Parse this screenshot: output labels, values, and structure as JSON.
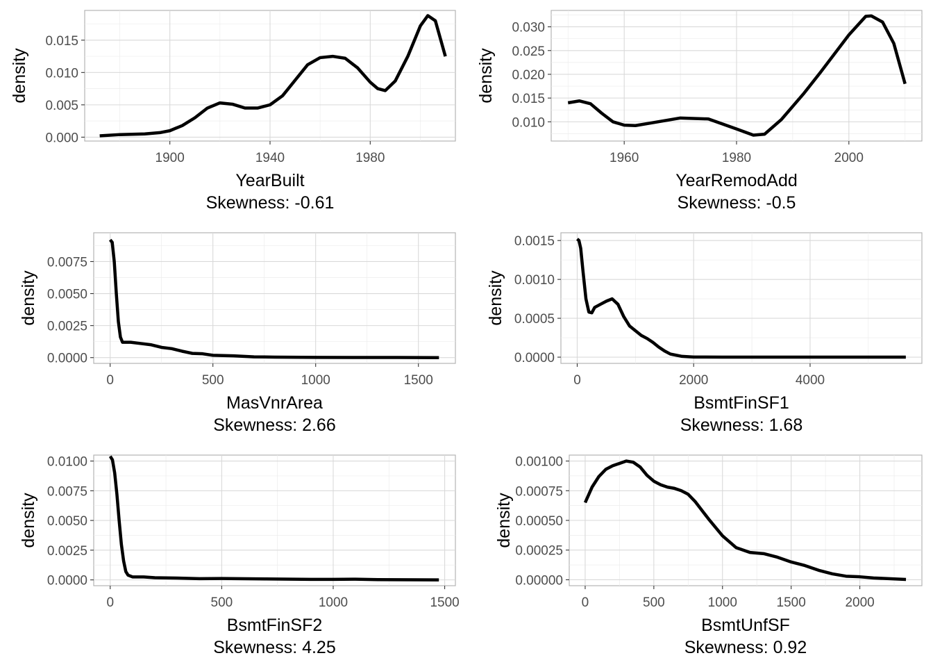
{
  "chart_data": [
    {
      "type": "line",
      "panel": "yearbuilt",
      "ylabel": "density",
      "xlabel": "YearBuilt",
      "subtitle": "Skewness: -0.61",
      "xlim": [
        1866,
        2014
      ],
      "ylim": [
        -0.0006,
        0.0196
      ],
      "xticks": [
        1900,
        1940,
        1980
      ],
      "yticks": [
        0.0,
        0.005,
        0.01,
        0.015
      ],
      "ytick_labels": [
        "0.000",
        "0.005",
        "0.010",
        "0.015"
      ],
      "x": [
        1872,
        1880,
        1890,
        1896,
        1900,
        1905,
        1910,
        1915,
        1920,
        1925,
        1930,
        1935,
        1940,
        1945,
        1950,
        1955,
        1960,
        1965,
        1970,
        1975,
        1980,
        1983,
        1986,
        1990,
        1995,
        2000,
        2003,
        2006,
        2010
      ],
      "y": [
        0.0002,
        0.0004,
        0.0005,
        0.0007,
        0.001,
        0.0018,
        0.003,
        0.0045,
        0.0053,
        0.0051,
        0.0045,
        0.0045,
        0.005,
        0.0064,
        0.0088,
        0.0112,
        0.0123,
        0.0125,
        0.0122,
        0.0107,
        0.0085,
        0.0075,
        0.0072,
        0.0087,
        0.0125,
        0.0172,
        0.0188,
        0.018,
        0.0125
      ]
    },
    {
      "type": "line",
      "panel": "yearremodadd",
      "ylabel": "density",
      "xlabel": "YearRemodAdd",
      "subtitle": "Skewness: -0.5",
      "xlim": [
        1947,
        2013
      ],
      "ylim": [
        0.00595,
        0.03345
      ],
      "xticks": [
        1960,
        1980,
        2000
      ],
      "yticks": [
        0.01,
        0.015,
        0.02,
        0.025,
        0.03
      ],
      "ytick_labels": [
        "0.010",
        "0.015",
        "0.020",
        "0.025",
        "0.030"
      ],
      "x": [
        1950,
        1952,
        1954,
        1956,
        1958,
        1960,
        1962,
        1965,
        1970,
        1975,
        1980,
        1983,
        1985,
        1988,
        1992,
        1995,
        2000,
        2003,
        2004,
        2006,
        2008,
        2010
      ],
      "y": [
        0.014,
        0.0144,
        0.0138,
        0.0118,
        0.01,
        0.0093,
        0.0092,
        0.0098,
        0.0108,
        0.0106,
        0.0085,
        0.0072,
        0.0074,
        0.0105,
        0.016,
        0.0205,
        0.0283,
        0.0322,
        0.0323,
        0.031,
        0.0265,
        0.018
      ]
    },
    {
      "type": "line",
      "panel": "masvnrarea",
      "ylabel": "density",
      "xlabel": "MasVnrArea",
      "subtitle": "Skewness: 2.66",
      "xlim": [
        -80,
        1680
      ],
      "ylim": [
        -0.00045,
        0.00975
      ],
      "xticks": [
        0,
        500,
        1000,
        1500
      ],
      "yticks": [
        0.0,
        0.0025,
        0.005,
        0.0075
      ],
      "ytick_labels": [
        "0.0000",
        "0.0025",
        "0.0050",
        "0.0075"
      ],
      "x": [
        0,
        10,
        20,
        30,
        40,
        50,
        60,
        80,
        100,
        150,
        200,
        250,
        300,
        350,
        400,
        450,
        500,
        600,
        700,
        800,
        1000,
        1200,
        1400,
        1600
      ],
      "y": [
        0.0092,
        0.009,
        0.0075,
        0.005,
        0.0028,
        0.0016,
        0.0012,
        0.0012,
        0.0012,
        0.0011,
        0.001,
        0.0008,
        0.0007,
        0.0005,
        0.00033,
        0.0003,
        0.00018,
        0.00014,
        6e-05,
        4e-05,
        2e-05,
        1e-05,
        1e-05,
        0.0
      ]
    },
    {
      "type": "line",
      "panel": "bsmtfinsf1",
      "ylabel": "density",
      "xlabel": "BsmtFinSF1",
      "subtitle": "Skewness: 1.68",
      "xlim": [
        -280,
        5920
      ],
      "ylim": [
        -8e-05,
        0.0016
      ],
      "xticks": [
        0,
        2000,
        4000
      ],
      "yticks": [
        0.0,
        0.0005,
        0.001,
        0.0015
      ],
      "ytick_labels": [
        "0.0000",
        "0.0005",
        "0.0010",
        "0.0015"
      ],
      "x": [
        0,
        30,
        60,
        100,
        150,
        200,
        250,
        300,
        400,
        500,
        600,
        700,
        800,
        900,
        1000,
        1100,
        1200,
        1300,
        1400,
        1500,
        1600,
        1800,
        2000,
        2500,
        3000,
        4000,
        5000,
        5644
      ],
      "y": [
        0.00152,
        0.0015,
        0.0014,
        0.0011,
        0.00075,
        0.00058,
        0.00057,
        0.00064,
        0.00068,
        0.00072,
        0.00075,
        0.00068,
        0.00052,
        0.0004,
        0.00034,
        0.00028,
        0.00024,
        0.00019,
        0.00013,
        8e-05,
        4e-05,
        1e-05,
        2e-06,
        0.0,
        0.0,
        0.0,
        0.0,
        0.0
      ]
    },
    {
      "type": "line",
      "panel": "bsmtfinsf2",
      "ylabel": "density",
      "xlabel": "BsmtFinSF2",
      "subtitle": "Skewness: 4.25",
      "xlim": [
        -74,
        1548
      ],
      "ylim": [
        -0.00049,
        0.0105
      ],
      "xticks": [
        0,
        500,
        1000,
        1500
      ],
      "yticks": [
        0.0,
        0.0025,
        0.005,
        0.0075,
        0.01
      ],
      "ytick_labels": [
        "0.0000",
        "0.0025",
        "0.0050",
        "0.0075",
        "0.0100"
      ],
      "x": [
        0,
        10,
        20,
        30,
        40,
        50,
        60,
        70,
        80,
        100,
        150,
        200,
        300,
        400,
        500,
        700,
        900,
        1000,
        1100,
        1200,
        1474
      ],
      "y": [
        0.0104,
        0.0101,
        0.009,
        0.0072,
        0.005,
        0.003,
        0.0016,
        0.0007,
        0.0004,
        0.00025,
        0.00025,
        0.00018,
        0.00015,
        0.0001,
        0.00012,
        8e-05,
        4e-05,
        4e-05,
        6e-05,
        2e-05,
        0.0
      ]
    },
    {
      "type": "line",
      "panel": "bsmtunfsf",
      "ylabel": "density",
      "xlabel": "BsmtUnfSF",
      "subtitle": "Skewness: 0.92",
      "xlim": [
        -116,
        2452
      ],
      "ylim": [
        -5e-05,
        0.00105
      ],
      "xticks": [
        0,
        500,
        1000,
        1500,
        2000
      ],
      "yticks": [
        0.0,
        0.00025,
        0.0005,
        0.00075,
        0.001
      ],
      "ytick_labels": [
        "0.00000",
        "0.00025",
        "0.00050",
        "0.00075",
        "0.00100"
      ],
      "x": [
        0,
        50,
        100,
        150,
        200,
        250,
        300,
        350,
        400,
        450,
        500,
        550,
        600,
        650,
        700,
        750,
        800,
        900,
        1000,
        1100,
        1200,
        1300,
        1400,
        1500,
        1600,
        1700,
        1800,
        1900,
        2000,
        2100,
        2200,
        2336
      ],
      "y": [
        0.00065,
        0.00078,
        0.00087,
        0.00093,
        0.00096,
        0.00098,
        0.001,
        0.00099,
        0.00095,
        0.00088,
        0.00083,
        0.0008,
        0.00078,
        0.00077,
        0.00075,
        0.00072,
        0.00066,
        0.00051,
        0.00037,
        0.00027,
        0.00023,
        0.00022,
        0.00019,
        0.00015,
        0.00012,
        8e-05,
        5e-05,
        3e-05,
        2.5e-05,
        1.5e-05,
        1e-05,
        3e-06
      ]
    }
  ]
}
